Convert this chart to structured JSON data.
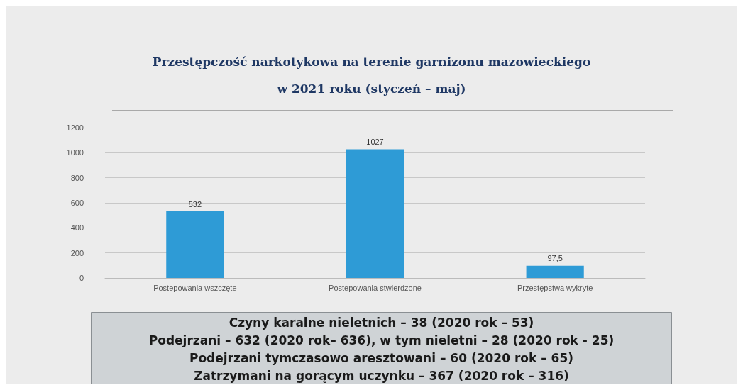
{
  "chart_data": {
    "type": "bar",
    "title": "Przestępczość narkotykowa na terenie garnizonu mazowieckiego\nw 2021 roku (styczeń – maj)",
    "categories": [
      "Postepowania wszczęte",
      "Postepowania stwierdzone",
      "Przestępstwa wykryte"
    ],
    "values": [
      532,
      1027,
      97.5
    ],
    "value_labels": [
      "532",
      "1027",
      "97,5"
    ],
    "color": "#2e9bd6",
    "ylim": [
      0,
      1200
    ],
    "yticks": [
      0,
      200,
      400,
      600,
      800,
      1000,
      1200
    ],
    "grid": "y",
    "annotations": [
      "Czyny karalne nieletnich – 38 (2020 rok – 53)",
      "Podejrzani – 632 (2020 rok– 636), w tym nieletni – 28 (2020 rok - 25)",
      "Podejrzani tymczasowo aresztowani – 60 (2020 rok – 65)",
      "Zatrzymani na gorącym uczynku – 367 (2020 rok – 316)"
    ]
  }
}
